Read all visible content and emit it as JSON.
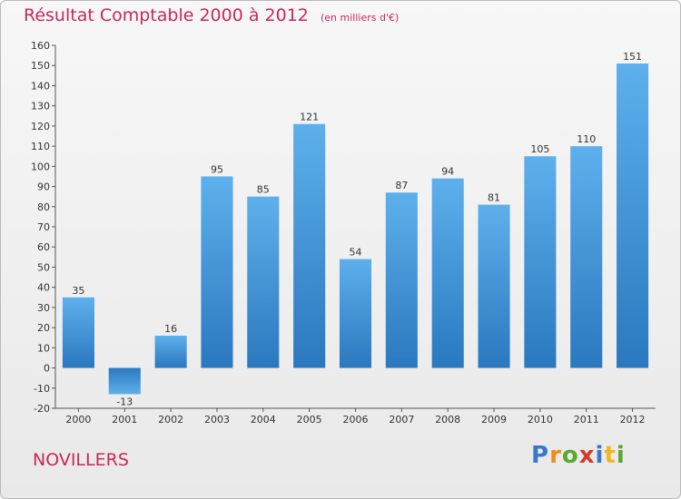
{
  "chart_data": {
    "type": "bar",
    "title": "Résultat Comptable 2000 à 2012",
    "subtitle": "(en milliers d'€)",
    "xlabel": "",
    "ylabel": "",
    "categories": [
      "2000",
      "2001",
      "2002",
      "2003",
      "2004",
      "2005",
      "2006",
      "2007",
      "2008",
      "2009",
      "2010",
      "2011",
      "2012"
    ],
    "values": [
      35,
      -13,
      16,
      95,
      85,
      121,
      54,
      87,
      94,
      81,
      105,
      110,
      151
    ],
    "ylim": [
      -20,
      160
    ],
    "yticks": [
      -20,
      -10,
      0,
      10,
      20,
      30,
      40,
      50,
      60,
      70,
      80,
      90,
      100,
      110,
      120,
      130,
      140,
      150,
      160
    ],
    "grid": false,
    "bar_color": "#3a8fd6"
  },
  "place_label": "NOVILLERS",
  "logo": {
    "letters": [
      "P",
      "r",
      "o",
      "x",
      "i",
      "t",
      "i"
    ],
    "colors": [
      "#3b78c9",
      "#f08a1c",
      "#5aa832",
      "#d23a2a",
      "#3b78c9",
      "#f0b81c",
      "#5aa832"
    ]
  }
}
